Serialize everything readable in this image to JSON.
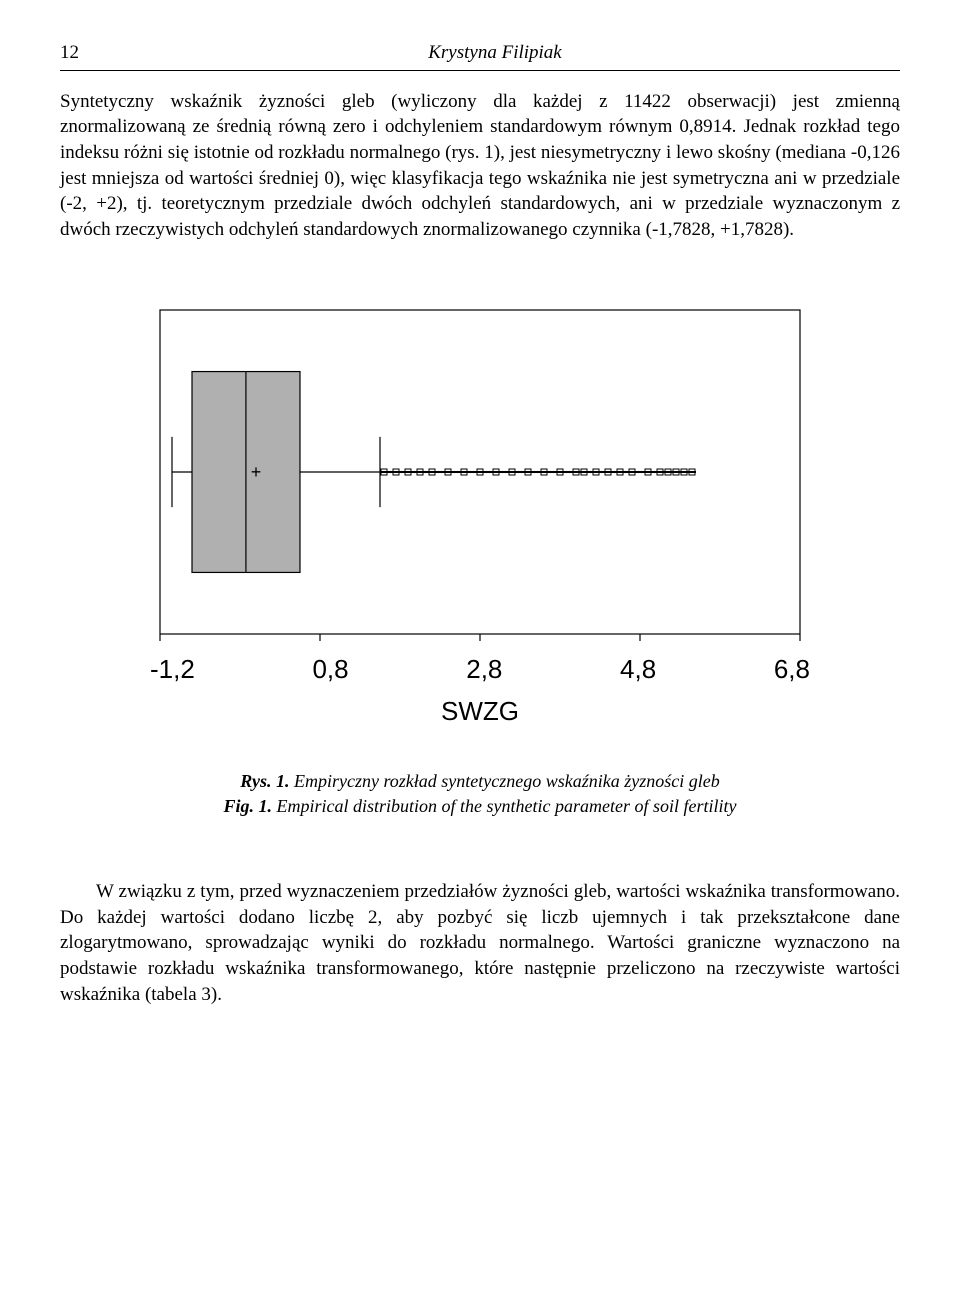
{
  "header": {
    "page_number": "12",
    "author": "Krystyna Filipiak"
  },
  "paragraphs": {
    "p1": "Syntetyczny wskaźnik żyzności gleb (wyliczony dla każdej z 11422 obserwacji) jest zmienną znormalizowaną ze średnią równą zero i odchyleniem standardowym równym 0,8914. Jednak rozkład tego indeksu różni się istotnie od rozkładu normalnego (rys. 1), jest niesymetryczny i lewo skośny (mediana -0,126 jest mniejsza od wartości średniej 0), więc klasyfikacja tego wskaźnika nie jest symetryczna ani w przedziale (-2, +2), tj. teoretycznym przedziale dwóch odchyleń standardowych, ani w przedziale wyznaczonym z dwóch rzeczywistych odchyleń standardowych znormalizowanego czynnika (-1,7828, +1,7828).",
    "p2": "W związku z tym, przed wyznaczeniem przedziałów żyzności gleb, wartości wskaźnika transformowano. Do każdej wartości dodano liczbę 2, aby pozbyć się liczb ujemnych i tak  przekształcone dane zlogarytmowano, sprowadzając wyniki do rozkładu normalnego. Wartości graniczne wyznaczono na podstawie rozkładu wskaźnika transformowanego, które następnie przeliczono na rzeczywiste wartości wskaźnika (tabela 3)."
  },
  "chart": {
    "type": "boxplot",
    "orientation": "horizontal",
    "xlabel": "SWZG",
    "xticks": [
      "-1,2",
      "0,8",
      "2,8",
      "4,8",
      "6,8"
    ],
    "xlim": [
      -1.2,
      6.8
    ],
    "plot_bg": "#ffffff",
    "box_fill": "#b0b0b0",
    "border_color": "#000000",
    "whisker_low": -1.05,
    "q1": -0.8,
    "median": -0.126,
    "q3": 0.55,
    "whisker_high": 1.55,
    "mean_marker": "+",
    "mean_x": 0.0,
    "outliers_x": [
      1.6,
      1.75,
      1.9,
      2.05,
      2.2,
      2.4,
      2.6,
      2.8,
      3.0,
      3.2,
      3.4,
      3.6,
      3.8,
      4.0,
      4.1,
      4.25,
      4.4,
      4.55,
      4.7,
      4.9,
      5.05,
      5.15,
      5.25,
      5.35,
      5.45
    ],
    "font_family": "Arial",
    "tick_fontsize": 26,
    "label_fontsize": 26,
    "line_width": 1.2
  },
  "caption": {
    "line1_label": "Rys. 1.",
    "line1_text": " Empiryczny rozkład syntetycznego wskaźnika żyzności gleb",
    "line2_label": "Fig. 1.",
    "line2_text": " Empirical distribution of the synthetic parameter of soil fertility"
  }
}
